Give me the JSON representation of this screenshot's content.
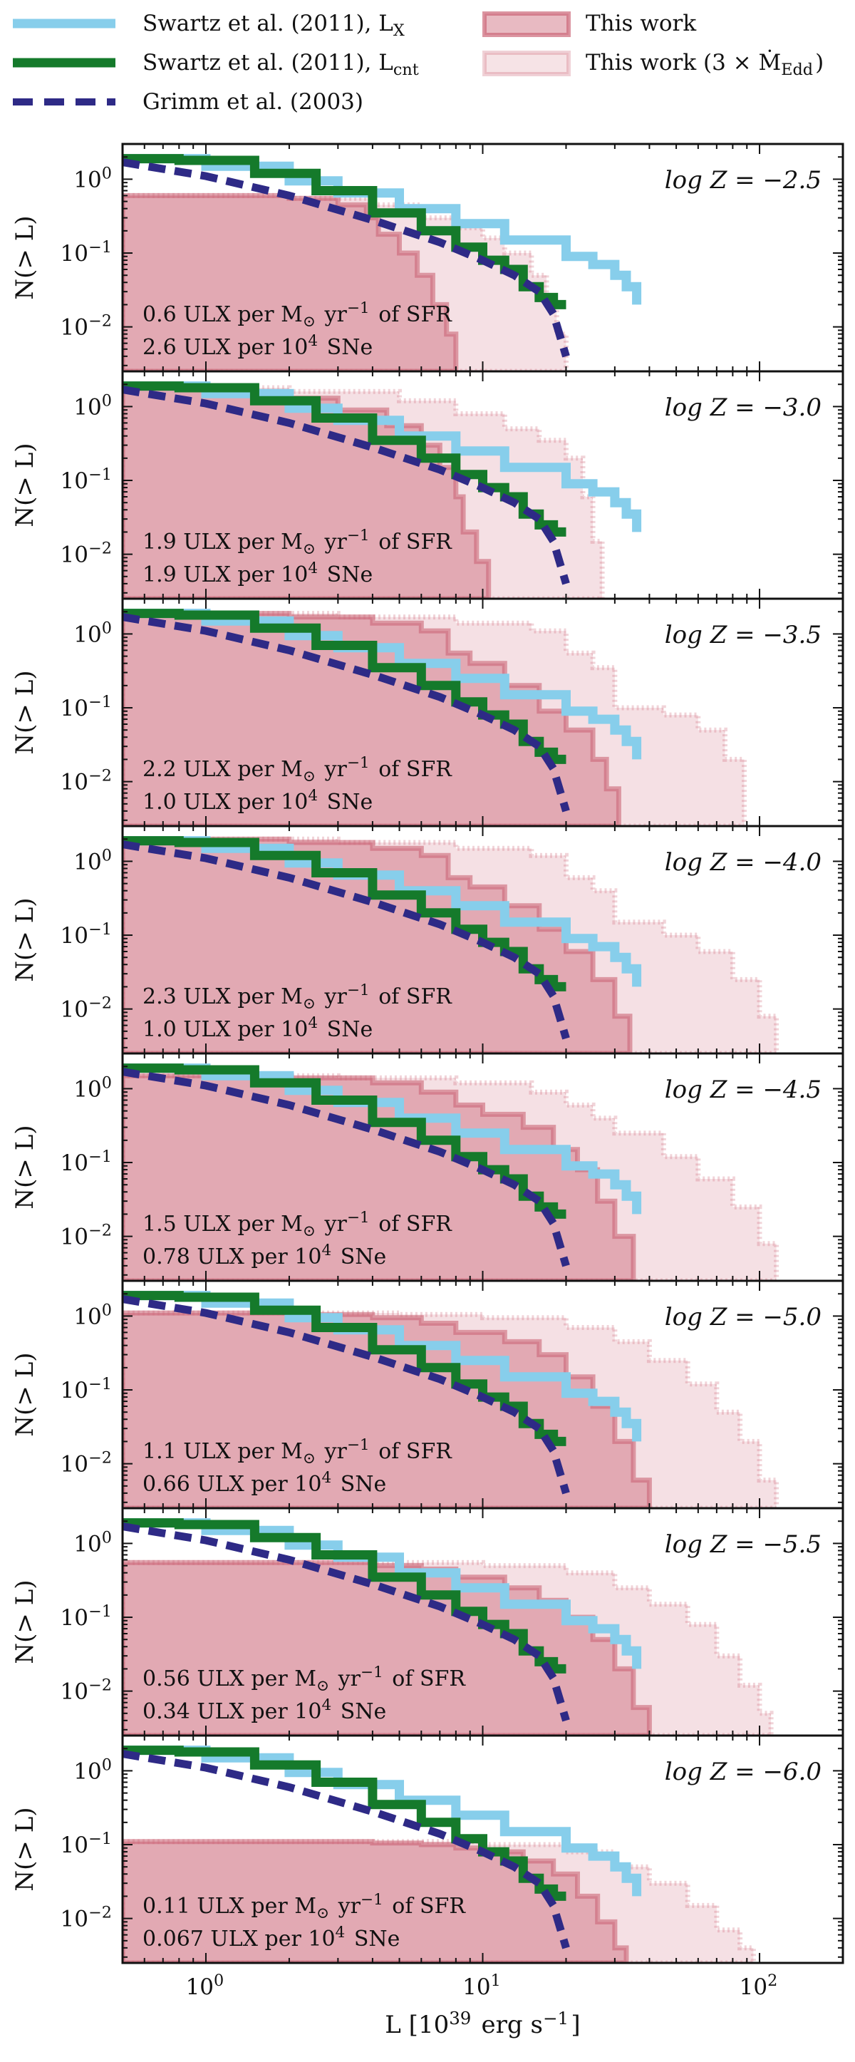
{
  "chart_data": {
    "type": "line",
    "figure_kind": "cumulative luminosity functions, 8 stacked panels sharing the x axis",
    "xlabel": "L [10^39 erg s^-1]",
    "ylabel": "N(> L)",
    "xscale": "log",
    "yscale": "log",
    "xlim": [
      0.5,
      200
    ],
    "ylim": [
      0.0025,
      3.0
    ],
    "x_ticks": [
      {
        "value": 1,
        "label": "10^0"
      },
      {
        "value": 10,
        "label": "10^1"
      },
      {
        "value": 100,
        "label": "10^2"
      }
    ],
    "y_ticks": [
      {
        "value": 1,
        "label": "10^0"
      },
      {
        "value": 0.1,
        "label": "10^-1"
      },
      {
        "value": 0.01,
        "label": "10^-2"
      }
    ],
    "grid": false,
    "legend": {
      "placement": "top, above panels",
      "entries": [
        {
          "label": "Swartz et al. (2011), L_X",
          "style": "line",
          "color": "#87CEEB"
        },
        {
          "label": "Swartz et al. (2011), L_cnt",
          "style": "line",
          "color": "#157a2b"
        },
        {
          "label": "Grimm et al. (2003)",
          "style": "dashed",
          "color": "#2e2a86"
        },
        {
          "label": "This work",
          "style": "patch",
          "color": "#cc6677"
        },
        {
          "label": "This work (3 × Ṁ_Edd)",
          "style": "patch-light",
          "color": "#cc6677"
        }
      ]
    },
    "common_series": [
      {
        "name": "Swartz et al. (2011), L_X",
        "color": "#87CEEB",
        "x": [
          0.5,
          1,
          2,
          3,
          5,
          8,
          12,
          20,
          25,
          30,
          33,
          36
        ],
        "y": [
          1.9,
          1.5,
          0.95,
          0.65,
          0.4,
          0.25,
          0.15,
          0.09,
          0.07,
          0.05,
          0.035,
          0.02
        ]
      },
      {
        "name": "Swartz et al. (2011), L_cnt",
        "color": "#157a2b",
        "x": [
          0.5,
          0.8,
          1.5,
          2.5,
          4,
          6,
          8,
          10,
          12,
          14,
          16,
          18,
          20
        ],
        "y": [
          1.9,
          1.8,
          1.2,
          0.7,
          0.35,
          0.2,
          0.12,
          0.08,
          0.06,
          0.035,
          0.025,
          0.02,
          0.02
        ]
      },
      {
        "name": "Grimm et al. (2003)",
        "color": "#2e2a86",
        "x": [
          0.5,
          1,
          2,
          4,
          7,
          10,
          13,
          16,
          18,
          20
        ],
        "y": [
          1.7,
          1.1,
          0.6,
          0.28,
          0.14,
          0.08,
          0.05,
          0.03,
          0.015,
          0.004
        ]
      }
    ],
    "panels": [
      {
        "z_label": "log Z = −2.5",
        "rate_sfr": "0.6 ULX per M_⊙ yr^−1 of SFR",
        "rate_sne": "2.6 ULX per 10^4 SNe",
        "this_work": {
          "x": [
            0.5,
            1,
            2,
            3,
            3.8,
            4.2,
            5,
            5.8,
            6.6,
            7.4,
            8
          ],
          "y": [
            0.6,
            0.6,
            0.55,
            0.45,
            0.3,
            0.18,
            0.1,
            0.05,
            0.02,
            0.008,
            0.0025
          ]
        },
        "this_work_3x": {
          "x": [
            0.5,
            2,
            4,
            6,
            8,
            10,
            12,
            15,
            17,
            18.5,
            20
          ],
          "y": [
            0.6,
            0.55,
            0.45,
            0.3,
            0.22,
            0.16,
            0.1,
            0.05,
            0.02,
            0.008,
            0.0025
          ]
        }
      },
      {
        "z_label": "log Z = −3.0",
        "rate_sfr": "1.9 ULX per M_⊙ yr^−1 of SFR",
        "rate_sne": "1.9 ULX per 10^4 SNe",
        "this_work": {
          "x": [
            0.5,
            1,
            2,
            3,
            4.5,
            6,
            7,
            8,
            8.5,
            9.5,
            10.5
          ],
          "y": [
            1.8,
            1.6,
            1.3,
            0.9,
            0.55,
            0.3,
            0.15,
            0.06,
            0.02,
            0.008,
            0.0025
          ]
        },
        "this_work_3x": {
          "x": [
            0.5,
            2,
            5,
            8,
            12,
            16,
            20,
            23,
            25,
            27
          ],
          "y": [
            1.8,
            1.6,
            1.2,
            0.8,
            0.5,
            0.35,
            0.2,
            0.06,
            0.015,
            0.0025
          ]
        }
      },
      {
        "z_label": "log Z = −3.5",
        "rate_sfr": "2.2 ULX per M_⊙ yr^−1 of SFR",
        "rate_sne": "1.0 ULX per 10^4 SNe",
        "this_work": {
          "x": [
            0.5,
            2,
            4,
            6,
            7.5,
            9,
            12,
            16,
            20,
            25,
            28,
            31
          ],
          "y": [
            1.9,
            1.7,
            1.4,
            1.1,
            0.55,
            0.4,
            0.2,
            0.09,
            0.05,
            0.02,
            0.008,
            0.0025
          ]
        },
        "this_work_3x": {
          "x": [
            0.5,
            3,
            8,
            15,
            20,
            25,
            30,
            45,
            60,
            75,
            88
          ],
          "y": [
            1.9,
            1.7,
            1.4,
            1.1,
            0.55,
            0.35,
            0.1,
            0.08,
            0.05,
            0.02,
            0.003
          ]
        }
      },
      {
        "z_label": "log Z = −4.0",
        "rate_sfr": "2.3 ULX per M_⊙ yr^−1 of SFR",
        "rate_sne": "1.0 ULX per 10^4 SNe",
        "this_work": {
          "x": [
            0.5,
            2,
            4,
            6,
            7.5,
            9,
            12,
            16,
            20,
            25,
            30,
            34
          ],
          "y": [
            2.0,
            1.8,
            1.5,
            1.2,
            0.6,
            0.45,
            0.25,
            0.12,
            0.06,
            0.025,
            0.008,
            0.0025
          ]
        },
        "this_work_3x": {
          "x": [
            0.5,
            3,
            8,
            15,
            20,
            25,
            30,
            45,
            60,
            80,
            100,
            115
          ],
          "y": [
            2.0,
            1.8,
            1.5,
            1.2,
            0.6,
            0.4,
            0.15,
            0.1,
            0.06,
            0.025,
            0.008,
            0.0025
          ]
        }
      },
      {
        "z_label": "log Z = −4.5",
        "rate_sfr": "1.5 ULX per M_⊙ yr^−1 of SFR",
        "rate_sne": "0.78 ULX per 10^4 SNe",
        "this_work": {
          "x": [
            0.5,
            2,
            4,
            6,
            8,
            10,
            14,
            18,
            22,
            26,
            30,
            35
          ],
          "y": [
            1.5,
            1.4,
            1.2,
            0.9,
            0.6,
            0.45,
            0.3,
            0.15,
            0.08,
            0.03,
            0.01,
            0.0025
          ]
        },
        "this_work_3x": {
          "x": [
            0.5,
            3,
            8,
            15,
            20,
            25,
            30,
            45,
            60,
            80,
            100,
            115
          ],
          "y": [
            1.5,
            1.4,
            1.2,
            0.9,
            0.6,
            0.4,
            0.25,
            0.12,
            0.06,
            0.025,
            0.008,
            0.0025
          ]
        }
      },
      {
        "z_label": "log Z = −5.0",
        "rate_sfr": "1.1 ULX per M_⊙ yr^−1 of SFR",
        "rate_sne": "0.66 ULX per 10^4 SNe",
        "this_work": {
          "x": [
            0.5,
            2,
            4,
            6,
            8,
            12,
            16,
            20,
            25,
            30,
            35,
            40
          ],
          "y": [
            1.1,
            1.05,
            0.95,
            0.8,
            0.6,
            0.45,
            0.3,
            0.15,
            0.06,
            0.02,
            0.006,
            0.0025
          ]
        },
        "this_work_3x": {
          "x": [
            0.5,
            5,
            10,
            20,
            30,
            40,
            55,
            70,
            85,
            100,
            115
          ],
          "y": [
            1.1,
            1.05,
            0.95,
            0.7,
            0.45,
            0.25,
            0.12,
            0.05,
            0.02,
            0.006,
            0.0025
          ]
        }
      },
      {
        "z_label": "log Z = −5.5",
        "rate_sfr": "0.56 ULX per M_⊙ yr^−1 of SFR",
        "rate_sne": "0.34 ULX per 10^4 SNe",
        "this_work": {
          "x": [
            0.5,
            2,
            4,
            6,
            8,
            12,
            16,
            20,
            25,
            30,
            35,
            40
          ],
          "y": [
            0.55,
            0.55,
            0.5,
            0.45,
            0.35,
            0.25,
            0.17,
            0.1,
            0.05,
            0.02,
            0.006,
            0.0025
          ]
        },
        "this_work_3x": {
          "x": [
            0.5,
            5,
            10,
            20,
            30,
            40,
            55,
            70,
            85,
            100,
            110
          ],
          "y": [
            0.55,
            0.55,
            0.5,
            0.4,
            0.25,
            0.15,
            0.08,
            0.03,
            0.012,
            0.005,
            0.0025
          ]
        }
      },
      {
        "z_label": "log Z = −6.0",
        "rate_sfr": "0.11 ULX per M_⊙ yr^−1 of SFR",
        "rate_sne": "0.067 ULX per 10^4 SNe",
        "this_work": {
          "x": [
            0.5,
            2,
            4,
            6,
            8,
            10,
            14,
            18,
            22,
            26,
            30,
            33
          ],
          "y": [
            0.11,
            0.11,
            0.105,
            0.1,
            0.09,
            0.08,
            0.06,
            0.04,
            0.02,
            0.009,
            0.004,
            0.0025
          ]
        },
        "this_work_3x": {
          "x": [
            0.5,
            5,
            10,
            20,
            30,
            40,
            55,
            70,
            85,
            95
          ],
          "y": [
            0.11,
            0.11,
            0.1,
            0.08,
            0.05,
            0.03,
            0.015,
            0.007,
            0.004,
            0.0025
          ]
        }
      }
    ]
  }
}
